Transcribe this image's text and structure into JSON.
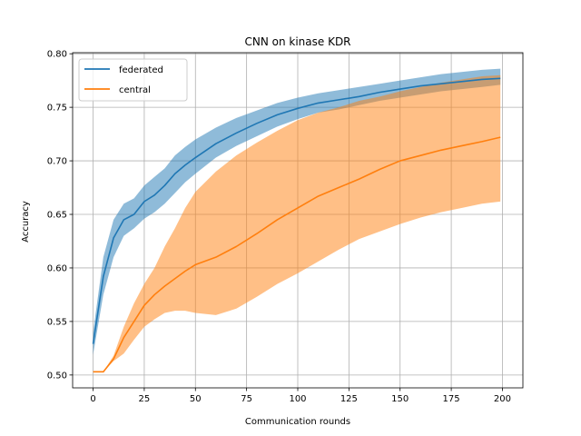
{
  "chart_data": {
    "type": "line",
    "title": "CNN on kinase KDR",
    "xlabel": "Communication rounds",
    "ylabel": "Accuracy",
    "xlim": [
      -10,
      210
    ],
    "ylim": [
      0.488,
      0.801
    ],
    "xticks": [
      0,
      25,
      50,
      75,
      100,
      125,
      150,
      175,
      200
    ],
    "yticks": [
      0.5,
      0.55,
      0.6,
      0.65,
      0.7,
      0.75,
      0.8
    ],
    "xtick_labels": [
      "0",
      "25",
      "50",
      "75",
      "100",
      "125",
      "150",
      "175",
      "200"
    ],
    "ytick_labels": [
      "0.50",
      "0.55",
      "0.60",
      "0.65",
      "0.70",
      "0.75",
      "0.80"
    ],
    "grid": true,
    "legend_position": "top-left",
    "series": [
      {
        "name": "federated",
        "color": "#1f77b4",
        "x": [
          0,
          5,
          10,
          15,
          20,
          25,
          30,
          35,
          40,
          45,
          50,
          60,
          70,
          80,
          90,
          100,
          110,
          120,
          130,
          140,
          150,
          160,
          170,
          180,
          190,
          199
        ],
        "y": [
          0.529,
          0.592,
          0.628,
          0.645,
          0.65,
          0.662,
          0.668,
          0.677,
          0.688,
          0.696,
          0.703,
          0.716,
          0.726,
          0.735,
          0.743,
          0.749,
          0.754,
          0.757,
          0.76,
          0.764,
          0.767,
          0.77,
          0.772,
          0.774,
          0.776,
          0.777
        ],
        "lower": [
          0.519,
          0.575,
          0.61,
          0.63,
          0.637,
          0.646,
          0.652,
          0.66,
          0.67,
          0.68,
          0.688,
          0.703,
          0.714,
          0.723,
          0.732,
          0.739,
          0.745,
          0.748,
          0.752,
          0.756,
          0.759,
          0.762,
          0.765,
          0.767,
          0.769,
          0.771
        ],
        "upper": [
          0.54,
          0.61,
          0.645,
          0.66,
          0.665,
          0.677,
          0.685,
          0.693,
          0.705,
          0.713,
          0.72,
          0.731,
          0.74,
          0.747,
          0.754,
          0.759,
          0.763,
          0.766,
          0.769,
          0.772,
          0.775,
          0.778,
          0.781,
          0.783,
          0.785,
          0.786
        ]
      },
      {
        "name": "central",
        "color": "#ff7f0e",
        "x": [
          0,
          5,
          10,
          15,
          20,
          25,
          30,
          35,
          40,
          45,
          50,
          60,
          70,
          80,
          90,
          100,
          110,
          120,
          130,
          140,
          150,
          160,
          170,
          180,
          190,
          199
        ],
        "y": [
          0.503,
          0.503,
          0.515,
          0.535,
          0.55,
          0.565,
          0.575,
          0.583,
          0.59,
          0.597,
          0.603,
          0.61,
          0.62,
          0.632,
          0.645,
          0.656,
          0.667,
          0.675,
          0.683,
          0.692,
          0.7,
          0.705,
          0.71,
          0.714,
          0.718,
          0.722
        ],
        "lower": [
          0.503,
          0.503,
          0.513,
          0.52,
          0.533,
          0.545,
          0.552,
          0.558,
          0.56,
          0.56,
          0.558,
          0.556,
          0.562,
          0.573,
          0.585,
          0.595,
          0.606,
          0.617,
          0.627,
          0.634,
          0.641,
          0.647,
          0.652,
          0.656,
          0.66,
          0.662
        ],
        "upper": [
          0.503,
          0.503,
          0.518,
          0.545,
          0.567,
          0.585,
          0.6,
          0.62,
          0.637,
          0.656,
          0.671,
          0.69,
          0.705,
          0.717,
          0.728,
          0.738,
          0.745,
          0.75,
          0.756,
          0.76,
          0.765,
          0.769,
          0.773,
          0.776,
          0.779,
          0.78
        ]
      }
    ]
  }
}
